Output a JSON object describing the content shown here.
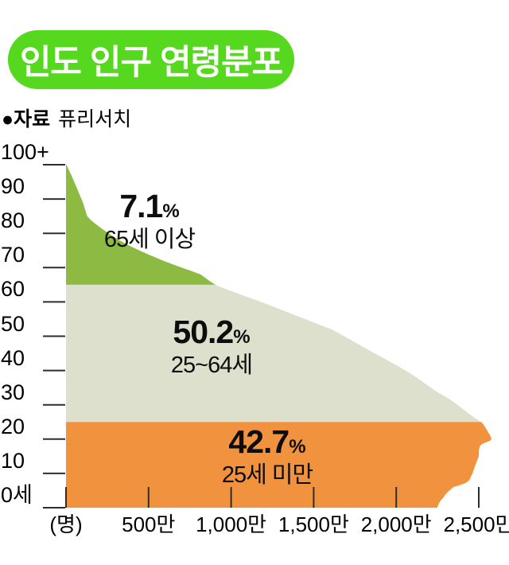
{
  "title": {
    "text": "인도 인구 연령분포",
    "badge_color": "#55d81e",
    "text_color": "#ffffff"
  },
  "source": {
    "label": "●자료",
    "value": "퓨리서치"
  },
  "chart_data": {
    "type": "area",
    "orientation": "horizontal-age-pyramid",
    "title": "인도 인구 연령분포",
    "source": "퓨리서치",
    "x_axis": {
      "unit_label": "(명)",
      "tick_labels": [
        "500만",
        "1,000만",
        "1,500만",
        "2,000만",
        "2,500만"
      ],
      "tick_values_man": [
        500,
        1000,
        1500,
        2000,
        2500
      ],
      "range_man": [
        0,
        2500
      ],
      "grid": false
    },
    "y_axis": {
      "tick_labels": [
        "100+",
        "90",
        "80",
        "70",
        "60",
        "50",
        "40",
        "30",
        "20",
        "10",
        "0세"
      ],
      "tick_ages": [
        100,
        90,
        80,
        70,
        60,
        50,
        40,
        30,
        20,
        10,
        0
      ],
      "range_age": [
        0,
        100
      ]
    },
    "tick_color": "#2e2e2e",
    "percent_suffix": "%",
    "segments": [
      {
        "id": "seniors",
        "label": "65세 이상",
        "percent_text": "7.1",
        "percent": 7.1,
        "age_min": 65,
        "age_max": 100,
        "color": "#8cba43"
      },
      {
        "id": "working",
        "label": "25~64세",
        "percent_text": "50.2",
        "percent": 50.2,
        "age_min": 25,
        "age_max": 65,
        "color": "#dde0cc"
      },
      {
        "id": "youth",
        "label": "25세 미만",
        "percent_text": "42.7",
        "percent": 42.7,
        "age_min": 0,
        "age_max": 25,
        "color": "#f0923e"
      }
    ],
    "population_by_age_man": [
      [
        100,
        3
      ],
      [
        99,
        12
      ],
      [
        98,
        22
      ],
      [
        97,
        32
      ],
      [
        95,
        50
      ],
      [
        93,
        68
      ],
      [
        91,
        85
      ],
      [
        89,
        102
      ],
      [
        87,
        115
      ],
      [
        85,
        128
      ],
      [
        84,
        148
      ],
      [
        83,
        172
      ],
      [
        82,
        200
      ],
      [
        81,
        228
      ],
      [
        80,
        258
      ],
      [
        79,
        290
      ],
      [
        78,
        322
      ],
      [
        77,
        360
      ],
      [
        76,
        400
      ],
      [
        75,
        445
      ],
      [
        74,
        492
      ],
      [
        73,
        540
      ],
      [
        72,
        590
      ],
      [
        71,
        645
      ],
      [
        70,
        700
      ],
      [
        69,
        760
      ],
      [
        68,
        815
      ],
      [
        67,
        845
      ],
      [
        66,
        872
      ],
      [
        65,
        905
      ],
      [
        64,
        955
      ],
      [
        63,
        1010
      ],
      [
        62,
        1065
      ],
      [
        61,
        1125
      ],
      [
        60,
        1180
      ],
      [
        59,
        1235
      ],
      [
        58,
        1290
      ],
      [
        57,
        1340
      ],
      [
        56,
        1395
      ],
      [
        55,
        1448
      ],
      [
        54,
        1500
      ],
      [
        53,
        1555
      ],
      [
        52,
        1610
      ],
      [
        51,
        1648
      ],
      [
        50,
        1685
      ],
      [
        49,
        1722
      ],
      [
        48,
        1758
      ],
      [
        47,
        1795
      ],
      [
        46,
        1832
      ],
      [
        45,
        1870
      ],
      [
        44,
        1908
      ],
      [
        43,
        1946
      ],
      [
        42,
        1984
      ],
      [
        41,
        2020
      ],
      [
        40,
        2057
      ],
      [
        39,
        2090
      ],
      [
        38,
        2122
      ],
      [
        37,
        2152
      ],
      [
        36,
        2180
      ],
      [
        35,
        2210
      ],
      [
        34,
        2240
      ],
      [
        33,
        2275
      ],
      [
        32,
        2312
      ],
      [
        31,
        2342
      ],
      [
        30,
        2370
      ],
      [
        29,
        2398
      ],
      [
        28,
        2424
      ],
      [
        27,
        2452
      ],
      [
        26,
        2480
      ],
      [
        25,
        2515
      ],
      [
        24,
        2532
      ],
      [
        23,
        2545
      ],
      [
        22,
        2557
      ],
      [
        21,
        2570
      ],
      [
        20,
        2577
      ],
      [
        19.5,
        2568
      ],
      [
        19,
        2540
      ],
      [
        18.5,
        2518
      ],
      [
        18,
        2508
      ],
      [
        17,
        2501
      ],
      [
        16,
        2500
      ],
      [
        15,
        2500
      ],
      [
        14,
        2492
      ],
      [
        13,
        2484
      ],
      [
        12,
        2476
      ],
      [
        11,
        2469
      ],
      [
        10,
        2462
      ],
      [
        9,
        2452
      ],
      [
        8,
        2442
      ],
      [
        7.5,
        2430
      ],
      [
        7,
        2410
      ],
      [
        6.5,
        2380
      ],
      [
        6,
        2346
      ],
      [
        5,
        2322
      ],
      [
        4,
        2300
      ],
      [
        3,
        2286
      ],
      [
        2,
        2268
      ],
      [
        1,
        2256
      ],
      [
        0,
        2248
      ]
    ]
  }
}
